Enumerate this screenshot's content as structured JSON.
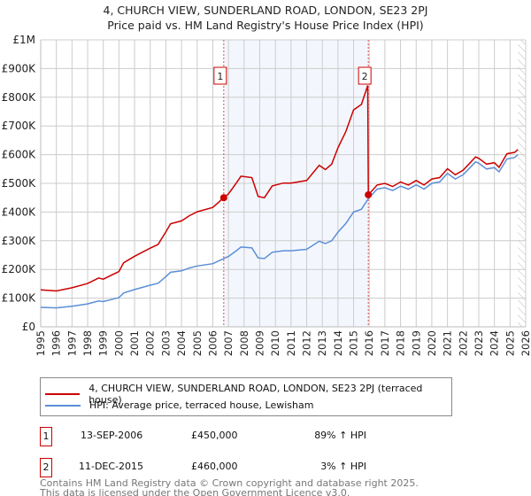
{
  "title": "4, CHURCH VIEW, SUNDERLAND ROAD, LONDON, SE23 2PJ",
  "subtitle": "Price paid vs. HM Land Registry's House Price Index (HPI)",
  "chart_data": {
    "type": "line",
    "title": "4, CHURCH VIEW, SUNDERLAND ROAD, LONDON, SE23 2PJ",
    "subtitle": "Price paid vs. HM Land Registry's House Price Index (HPI)",
    "xlim": [
      1995,
      2026
    ],
    "ylim": [
      0,
      1000000
    ],
    "grid": true,
    "y_ticks": [
      {
        "v": 0,
        "label": "£0"
      },
      {
        "v": 100000,
        "label": "£100K"
      },
      {
        "v": 200000,
        "label": "£200K"
      },
      {
        "v": 300000,
        "label": "£300K"
      },
      {
        "v": 400000,
        "label": "£400K"
      },
      {
        "v": 500000,
        "label": "£500K"
      },
      {
        "v": 600000,
        "label": "£600K"
      },
      {
        "v": 700000,
        "label": "£700K"
      },
      {
        "v": 800000,
        "label": "£800K"
      },
      {
        "v": 900000,
        "label": "£900K"
      },
      {
        "v": 1000000,
        "label": "£1M"
      }
    ],
    "x_ticks": [
      "1995",
      "1996",
      "1997",
      "1998",
      "1999",
      "2000",
      "2001",
      "2002",
      "2003",
      "2004",
      "2005",
      "2006",
      "2007",
      "2008",
      "2009",
      "2010",
      "2011",
      "2012",
      "2013",
      "2014",
      "2015",
      "2016",
      "2017",
      "2018",
      "2019",
      "2020",
      "2021",
      "2022",
      "2023",
      "2024",
      "2025",
      "2026"
    ],
    "shaded_range": [
      2006.7,
      2015.94
    ],
    "forecast_hatch_from": 2025.5,
    "series": [
      {
        "name": "4, CHURCH VIEW, SUNDERLAND ROAD, LONDON, SE23 2PJ (terraced house)",
        "color": "#cc0000",
        "points": [
          [
            1995,
            129000
          ],
          [
            1996,
            125000
          ],
          [
            1997,
            136000
          ],
          [
            1998,
            151000
          ],
          [
            1998.7,
            170000
          ],
          [
            1999,
            166000
          ],
          [
            2000,
            193000
          ],
          [
            2000.3,
            223000
          ],
          [
            2001,
            246000
          ],
          [
            2002,
            274000
          ],
          [
            2002.5,
            287000
          ],
          [
            2003,
            331000
          ],
          [
            2003.3,
            359000
          ],
          [
            2004,
            369000
          ],
          [
            2004.5,
            387000
          ],
          [
            2005,
            401000
          ],
          [
            2006,
            416000
          ],
          [
            2006.7,
            450000
          ],
          [
            2007,
            463000
          ],
          [
            2007.5,
            501000
          ],
          [
            2007.8,
            525000
          ],
          [
            2008.5,
            520000
          ],
          [
            2008.9,
            454000
          ],
          [
            2009.3,
            450000
          ],
          [
            2009.8,
            491000
          ],
          [
            2010.5,
            501000
          ],
          [
            2011,
            501000
          ],
          [
            2012,
            510000
          ],
          [
            2012.8,
            563000
          ],
          [
            2013.2,
            548000
          ],
          [
            2013.6,
            567000
          ],
          [
            2014,
            624000
          ],
          [
            2014.5,
            680000
          ],
          [
            2015,
            756000
          ],
          [
            2015.5,
            775000
          ],
          [
            2015.9,
            841000
          ],
          [
            2015.94,
            460000
          ],
          [
            2016.5,
            494000
          ],
          [
            2017,
            500000
          ],
          [
            2017.5,
            489000
          ],
          [
            2018,
            505000
          ],
          [
            2018.5,
            494000
          ],
          [
            2019,
            510000
          ],
          [
            2019.5,
            494000
          ],
          [
            2020,
            515000
          ],
          [
            2020.5,
            520000
          ],
          [
            2021,
            551000
          ],
          [
            2021.5,
            530000
          ],
          [
            2022,
            546000
          ],
          [
            2022.8,
            592000
          ],
          [
            2023,
            587000
          ],
          [
            2023.5,
            567000
          ],
          [
            2024,
            572000
          ],
          [
            2024.3,
            556000
          ],
          [
            2024.8,
            603000
          ],
          [
            2025.3,
            608000
          ],
          [
            2025.5,
            618000
          ]
        ]
      },
      {
        "name": "HPI: Average price, terraced house, Lewisham",
        "color": "#5b8fd6",
        "points": [
          [
            1995,
            68000
          ],
          [
            1996,
            66000
          ],
          [
            1997,
            72000
          ],
          [
            1998,
            80000
          ],
          [
            1998.7,
            90000
          ],
          [
            1999,
            88000
          ],
          [
            2000,
            102000
          ],
          [
            2000.3,
            118000
          ],
          [
            2001,
            130000
          ],
          [
            2002,
            145000
          ],
          [
            2002.5,
            152000
          ],
          [
            2003,
            175000
          ],
          [
            2003.3,
            190000
          ],
          [
            2004,
            195000
          ],
          [
            2004.5,
            205000
          ],
          [
            2005,
            212000
          ],
          [
            2006,
            220000
          ],
          [
            2006.7,
            238000
          ],
          [
            2007,
            245000
          ],
          [
            2007.5,
            265000
          ],
          [
            2007.8,
            278000
          ],
          [
            2008.5,
            275000
          ],
          [
            2008.9,
            240000
          ],
          [
            2009.3,
            238000
          ],
          [
            2009.8,
            260000
          ],
          [
            2010.5,
            265000
          ],
          [
            2011,
            265000
          ],
          [
            2012,
            270000
          ],
          [
            2012.8,
            298000
          ],
          [
            2013.2,
            290000
          ],
          [
            2013.6,
            300000
          ],
          [
            2014,
            330000
          ],
          [
            2014.5,
            360000
          ],
          [
            2015,
            400000
          ],
          [
            2015.5,
            410000
          ],
          [
            2015.94,
            447000
          ],
          [
            2016.5,
            480000
          ],
          [
            2017,
            485000
          ],
          [
            2017.5,
            475000
          ],
          [
            2018,
            490000
          ],
          [
            2018.5,
            480000
          ],
          [
            2019,
            495000
          ],
          [
            2019.5,
            480000
          ],
          [
            2020,
            500000
          ],
          [
            2020.5,
            505000
          ],
          [
            2021,
            535000
          ],
          [
            2021.5,
            515000
          ],
          [
            2022,
            530000
          ],
          [
            2022.8,
            575000
          ],
          [
            2023,
            570000
          ],
          [
            2023.5,
            550000
          ],
          [
            2024,
            555000
          ],
          [
            2024.3,
            540000
          ],
          [
            2024.8,
            585000
          ],
          [
            2025.3,
            590000
          ],
          [
            2025.5,
            600000
          ]
        ]
      }
    ],
    "annotations": [
      {
        "label": "1",
        "x": 2006.7,
        "y": 450000
      },
      {
        "label": "2",
        "x": 2015.94,
        "y": 460000
      }
    ]
  },
  "legend": {
    "items": [
      {
        "label": "4, CHURCH VIEW, SUNDERLAND ROAD, LONDON, SE23 2PJ (terraced house)",
        "color": "#cc0000"
      },
      {
        "label": "HPI: Average price, terraced house, Lewisham",
        "color": "#5b8fd6"
      }
    ]
  },
  "sales": [
    {
      "num": "1",
      "date": "13-SEP-2006",
      "price": "£450,000",
      "hpi": "89% ↑ HPI"
    },
    {
      "num": "2",
      "date": "11-DEC-2015",
      "price": "£460,000",
      "hpi": "3% ↑ HPI"
    }
  ],
  "footer": {
    "line1": "Contains HM Land Registry data © Crown copyright and database right 2025.",
    "line2": "This data is licensed under the Open Government Licence v3.0."
  }
}
